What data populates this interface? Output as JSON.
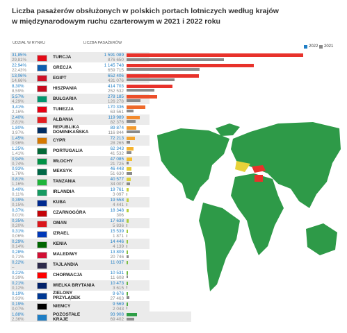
{
  "chart_data": {
    "type": "bar",
    "title": [
      "Liczba pasażerów obsłużonych w polskich portach lotniczych według krajów",
      "w międzynarodowym ruchu czarterowym w 2021 i 2022 roku"
    ],
    "share_header": "UDZIAŁ W RYNKU",
    "count_header": "LICZBA PASAŻERÓW",
    "categories": [
      "TURCJA",
      "GRECJA",
      "EGIPT",
      "HISZPANIA",
      "BUŁGARIA",
      "TUNEZJA",
      "ALBANIA",
      "REPUBLIKA DOMINIKAŃSKA",
      "CYPR",
      "PORTUGALIA",
      "WŁOCHY",
      "MEKSYK",
      "TANZANIA",
      "IRLANDIA",
      "KUBA",
      "CZARNOGÓRA",
      "OMAN",
      "IZRAEL",
      "KENIA",
      "MALEDIWY",
      "TAJLANDIA",
      "CHORWACJA",
      "WIELKA BRYTANIA",
      "ZIELONY PRZYLĄDEK",
      "NIEMCY",
      "POZOSTAŁE KRAJE"
    ],
    "shares": [
      {
        "name": "2022",
        "color": "#1f7ec5",
        "values": [
          31.85,
          22.94,
          13.06,
          8.3,
          5.57,
          3.41,
          2.4,
          1.8,
          1.45,
          1.25,
          0.94,
          0.93,
          0.81,
          0.4,
          0.39,
          0.37,
          0.35,
          0.31,
          0.29,
          0.28,
          0.22,
          0.21,
          0.21,
          0.19,
          0.19,
          1.88
        ],
        "value_labels": [
          "31,85%",
          "22,94%",
          "13,06%",
          "8,30%",
          "5,57%",
          "3,41%",
          "2,40%",
          "1,80%",
          "1,45%",
          "1,25%",
          "0,94%",
          "0,93%",
          "0,81%",
          "0,40%",
          "0,39%",
          "0,37%",
          "0,35%",
          "0,31%",
          "0,29%",
          "0,28%",
          "0,22%",
          "0,21%",
          "0,21%",
          "0,19%",
          "0,19%",
          "1,88%"
        ]
      },
      {
        "name": "2021",
        "color": "#8a8a8a",
        "values": [
          29.81,
          22.43,
          14.66,
          8.59,
          4.29,
          2.16,
          2.81,
          3.97,
          0.96,
          1.41,
          0.74,
          1.76,
          1.16,
          0.11,
          0.15,
          0.01,
          0.2,
          0.06,
          0.14,
          0.71,
          null,
          0.39,
          0.12,
          0.93,
          0.07,
          2.36
        ],
        "value_labels": [
          "29,81%",
          "22,43%",
          "14,66%",
          "8,59%",
          "4,29%",
          "2,16%",
          "2,81%",
          "3,97%",
          "0,96%",
          "1,41%",
          "0,74%",
          "1,76%",
          "1,16%",
          "0,11%",
          "0,15%",
          "0,01%",
          "0,20%",
          "0,06%",
          "0,14%",
          "0,71%",
          "–",
          "0,39%",
          "0,12%",
          "0,93%",
          "0,07%",
          "2,36%"
        ]
      }
    ],
    "series": [
      {
        "name": "2022",
        "color": "#1f7ec5",
        "bar_colors": [
          "#e8322b",
          "#e8322b",
          "#e8322b",
          "#e8322b",
          "#ec4f2a",
          "#ee6a2b",
          "#f28a2d",
          "#f39a2d",
          "#f4a52e",
          "#f5b32e",
          "#f2bd30",
          "#e6cb35",
          "#dcd13a",
          "#c9d23d",
          "#bfd13e",
          "#b5cf40",
          "#a9cc41",
          "#9dc942",
          "#92c543",
          "#86c144",
          "#7bbd45",
          "#70b945",
          "#66b546",
          "#5cb146",
          "#52ad46",
          "#2e9e46"
        ],
        "values": [
          1591089,
          1145748,
          652406,
          414703,
          278185,
          170336,
          119989,
          89874,
          72213,
          62343,
          47085,
          46448,
          40577,
          19761,
          19558,
          18348,
          17638,
          15539,
          14446,
          13809,
          11037,
          10531,
          10473,
          9676,
          9569,
          93908
        ],
        "value_labels": [
          "1 591 089",
          "1 145 748",
          "652 406",
          "414 703",
          "278 185",
          "170 336",
          "119 989",
          "89 874",
          "72 213",
          "62 343",
          "47 085",
          "46 448",
          "40 577",
          "19 761",
          "19 558",
          "18 348",
          "17 638",
          "15 539",
          "14 446",
          "13 809",
          "11 037",
          "10 531",
          "10 473",
          "9 676",
          "9 569",
          "93 908"
        ]
      },
      {
        "name": "2021",
        "color": "#8a8a8a",
        "values": [
          876650,
          659715,
          431076,
          252532,
          126278,
          63561,
          82376,
          116844,
          28265,
          41532,
          21725,
          51630,
          34007,
          3097,
          4441,
          306,
          5836,
          1871,
          4139,
          20746,
          null,
          11608,
          3615,
          27463,
          2043,
          69402
        ],
        "value_labels": [
          "876 650",
          "659 715",
          "431 076",
          "252 532",
          "126 278",
          "63 561",
          "82 376",
          "116 844",
          "28 265",
          "41 532",
          "21 725",
          "51 630",
          "34 007",
          "3 097",
          "4 441",
          "306",
          "5 836",
          "1 871",
          "4 139",
          "20 746",
          null,
          "11 608",
          "3 615",
          "27 463",
          "2 043",
          "69 402"
        ]
      }
    ],
    "xlim": [
      0,
      1600000
    ]
  }
}
